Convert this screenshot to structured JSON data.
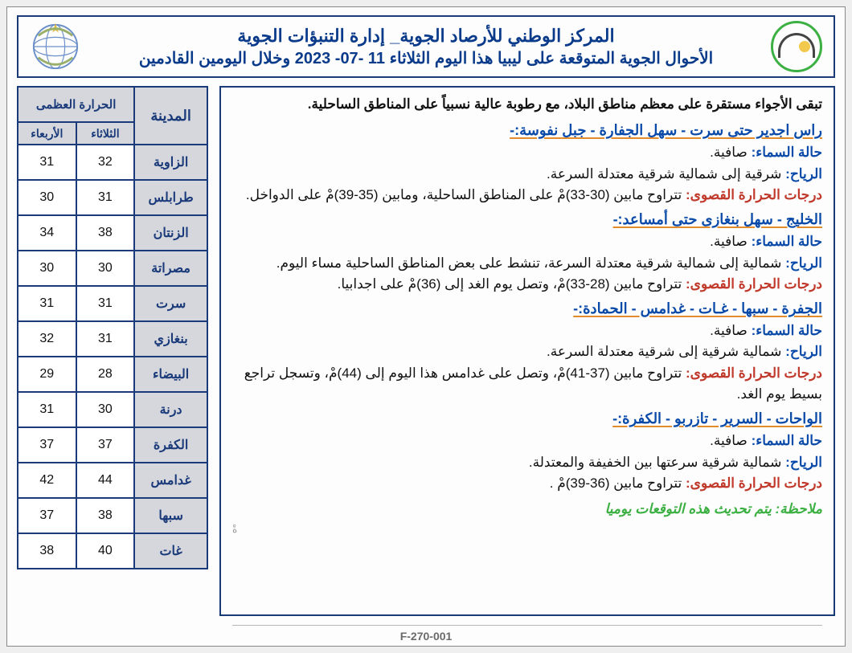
{
  "header": {
    "line1": "المركز الوطني للأرصاد الجوية_ إدارة التنبؤات الجوية",
    "line2": "الأحوال الجوية المتوقعة على ليبيا هذا اليوم الثلاثاء 11 -07- 2023 وخلال اليومين القادمين"
  },
  "intro": "تبقى الأجواء مستقرة على معظم مناطق البلاد، مع رطوبة عالية نسبياً على المناطق الساحلية.",
  "regions": [
    {
      "title": "راس اجدير حتى سرت - سهل الجفارة - جبل نفوسة:-",
      "sky": "حالة السماء: صافية.",
      "wind": "الرياح: شرقية إلى شمالية شرقية معتدلة السرعة.",
      "temp": "درجات الحرارة القصوى: تتراوح مابين (30-33)مْ على المناطق الساحلية، ومابين (35-39)مْ على الدواخل."
    },
    {
      "title": "الخليج - سهل بنغازى حتى أمساعد:-",
      "sky": "حالة السماء: صافية.",
      "wind": "الرياح: شمالية إلى شمالية شرقية معتدلة السرعة، تنشط على بعض المناطق الساحلية مساء اليوم.",
      "temp": "درجات الحرارة القصوى: تتراوح مابين (28-33)مْ، وتصل يوم الغد إلى (36)مْ على اجدابيا."
    },
    {
      "title": "الجفرة - سبها - غـات - غدامس - الحمادة:-",
      "sky": "حالة السماء: صافية.",
      "wind": "الرياح: شمالية شرقية إلى شرقية معتدلة السرعة.",
      "temp": "درجات الحرارة القصوى: تتراوح مابين (37-41)مْ، وتصل على غدامس هذا اليوم إلى (44)مْ، وتسجل تراجع بسيط يوم الغد."
    },
    {
      "title": "الواحات - السرير - تازربو - الكفرة:-",
      "sky": "حالة السماء: صافية.",
      "wind": "الرياح: شمالية شرقية سرعتها بين الخفيفة والمعتدلة.",
      "temp": "درجات الحرارة القصوى: تتراوح مابين (36-39)مْ ."
    }
  ],
  "note": "ملاحظة: يتم تحديث هذه التوقعات يوميا",
  "table": {
    "header_city": "المدينة",
    "header_max": "الحرارة العظمى",
    "sub_tue": "الثلاثاء",
    "sub_wed": "الأربعاء",
    "rows": [
      {
        "city": "الزاوية",
        "tue": "32",
        "wed": "31"
      },
      {
        "city": "طرابلس",
        "tue": "31",
        "wed": "30"
      },
      {
        "city": "الزنتان",
        "tue": "38",
        "wed": "34"
      },
      {
        "city": "مصراتة",
        "tue": "30",
        "wed": "30"
      },
      {
        "city": "سرت",
        "tue": "31",
        "wed": "31"
      },
      {
        "city": "بنغازي",
        "tue": "31",
        "wed": "32"
      },
      {
        "city": "البيضاء",
        "tue": "28",
        "wed": "29"
      },
      {
        "city": "درنة",
        "tue": "30",
        "wed": "31"
      },
      {
        "city": "الكفرة",
        "tue": "37",
        "wed": "37"
      },
      {
        "city": "غدامس",
        "tue": "44",
        "wed": "42"
      },
      {
        "city": "سبها",
        "tue": "38",
        "wed": "37"
      },
      {
        "city": "غات",
        "tue": "40",
        "wed": "38"
      }
    ]
  },
  "footer_code": "F-270-001",
  "labels": {
    "sky": "حالة السماء:",
    "wind": "الرياح:",
    "temp": "درجات الحرارة القصوى:"
  },
  "colors": {
    "frame": "#1a3a7a",
    "accent_orange": "#e28b2d",
    "red": "#c0392b",
    "green": "#3cb043",
    "header_bg": "#d5d7dc",
    "page_bg": "#fdfdfd"
  }
}
